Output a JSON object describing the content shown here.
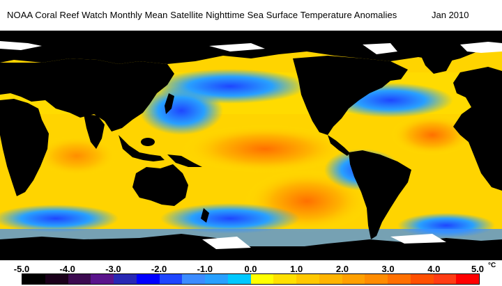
{
  "title": "NOAA Coral Reef Watch Monthly Mean Satellite Nighttime Sea Surface Temperature Anomalies",
  "date": "Jan 2010",
  "legend": {
    "ticks": [
      "-5.0",
      "-4.0",
      "-3.0",
      "-2.0",
      "-1.0",
      "0.0",
      "1.0",
      "2.0",
      "3.0",
      "4.0",
      "5.0"
    ],
    "unit": "°C",
    "colors": [
      "#000000",
      "#1a001a",
      "#3c0a50",
      "#5a148c",
      "#2828b4",
      "#0000ff",
      "#1e46ff",
      "#3c8cff",
      "#28a0ff",
      "#00c8ff",
      "#ffff00",
      "#ffe000",
      "#ffc800",
      "#ffb400",
      "#ffa000",
      "#ff8c00",
      "#ff7000",
      "#ff5000",
      "#ff3c14",
      "#ff0000"
    ]
  },
  "colors": {
    "land": "#000000",
    "ice": "#ffffff",
    "warm_anomaly": "#ffa000",
    "cool_anomaly": "#28a0ff",
    "neutral_anomaly": "#ffff00"
  }
}
